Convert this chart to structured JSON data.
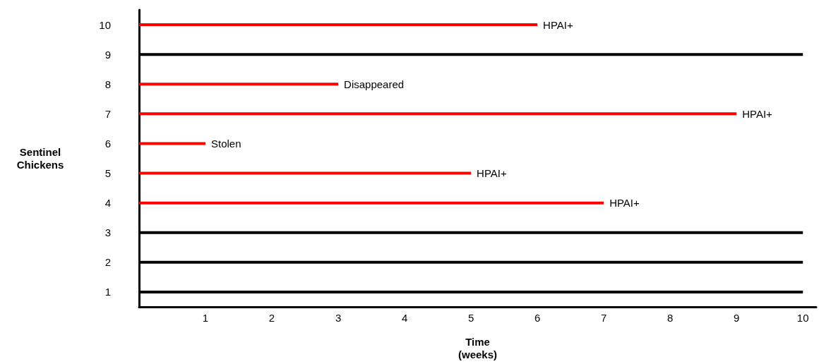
{
  "chart_data": {
    "type": "bar",
    "orientation": "horizontal",
    "xlabel": "Time\n(weeks)",
    "ylabel": "Sentinel\nChickens",
    "categories": [
      "10",
      "9",
      "8",
      "7",
      "6",
      "5",
      "4",
      "3",
      "2",
      "1"
    ],
    "values": [
      6,
      10,
      3,
      9,
      1,
      5,
      7,
      10,
      10,
      10
    ],
    "colors": [
      "#ff0000",
      "#000000",
      "#ff0000",
      "#ff0000",
      "#ff0000",
      "#ff0000",
      "#ff0000",
      "#000000",
      "#000000",
      "#000000"
    ],
    "value_labels": [
      "HPAI+",
      null,
      "Disappeared",
      "HPAI+",
      "Stolen",
      "HPAI+",
      "HPAI+",
      null,
      null,
      null
    ],
    "xlim": [
      0,
      10.2
    ],
    "xticks": [
      1,
      2,
      3,
      4,
      5,
      6,
      7,
      8,
      9,
      10
    ],
    "grid": false
  }
}
